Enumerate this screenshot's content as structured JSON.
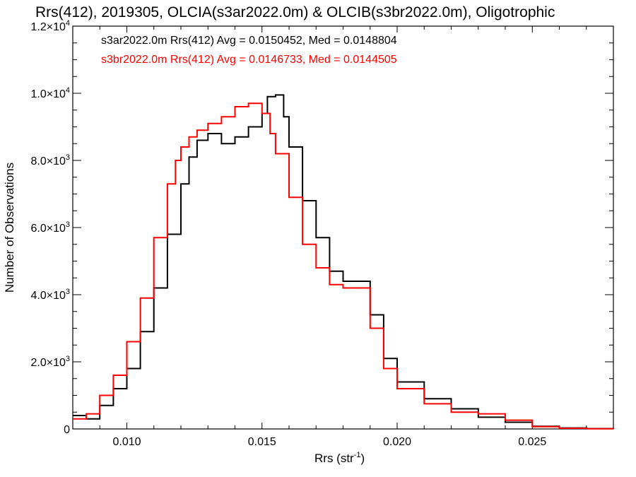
{
  "chart_data": {
    "type": "line",
    "title": "Rrs(412), 2019305, OLCIA(s3ar2022.0m) & OLCIB(s3br2022.0m), Oligotrophic",
    "xlabel_main": "Rrs (str",
    "xlabel_sup": "-1",
    "xlabel_end": ")",
    "ylabel": "Number of Observations",
    "xlim": [
      0.008,
      0.028
    ],
    "ylim": [
      0,
      12000
    ],
    "x_ticks": [
      {
        "value": 0.01,
        "label": "0.010"
      },
      {
        "value": 0.015,
        "label": "0.015"
      },
      {
        "value": 0.02,
        "label": "0.020"
      },
      {
        "value": 0.025,
        "label": "0.025"
      }
    ],
    "y_ticks": [
      {
        "value": 0,
        "mant": "0",
        "exp": ""
      },
      {
        "value": 2000,
        "mant": "2.0×10",
        "exp": "3"
      },
      {
        "value": 4000,
        "mant": "4.0×10",
        "exp": "3"
      },
      {
        "value": 6000,
        "mant": "6.0×10",
        "exp": "3"
      },
      {
        "value": 8000,
        "mant": "8.0×10",
        "exp": "3"
      },
      {
        "value": 10000,
        "mant": "1.0×10",
        "exp": "4"
      },
      {
        "value": 12000,
        "mant": "1.2×10",
        "exp": "4"
      }
    ],
    "legend_placement": "top-left",
    "series": [
      {
        "name": "s3ar2022.0m Rrs(412) Avg = 0.0150452, Med = 0.0148804",
        "color": "#000000",
        "x": [
          0.008,
          0.0085,
          0.009,
          0.0095,
          0.01,
          0.0105,
          0.011,
          0.0115,
          0.012,
          0.0123,
          0.0126,
          0.013,
          0.0135,
          0.014,
          0.0145,
          0.015,
          0.0152,
          0.0155,
          0.0158,
          0.016,
          0.0165,
          0.017,
          0.0175,
          0.018,
          0.0185,
          0.019,
          0.0195,
          0.02,
          0.021,
          0.022,
          0.023,
          0.024,
          0.025,
          0.026,
          0.027,
          0.028
        ],
        "y": [
          400,
          300,
          700,
          1200,
          1800,
          2900,
          4200,
          5800,
          7300,
          8100,
          8600,
          8800,
          8500,
          8700,
          9000,
          9400,
          9900,
          9950,
          9300,
          8400,
          6800,
          5700,
          4700,
          4400,
          4400,
          3400,
          2100,
          1400,
          900,
          600,
          350,
          200,
          80,
          30,
          10,
          5
        ]
      },
      {
        "name": "s3br2022.0m Rrs(412) Avg = 0.0146733, Med = 0.0144505",
        "color": "#ff0000",
        "x": [
          0.008,
          0.0085,
          0.009,
          0.0095,
          0.01,
          0.0105,
          0.011,
          0.0115,
          0.0118,
          0.012,
          0.0123,
          0.0126,
          0.013,
          0.0135,
          0.014,
          0.0145,
          0.015,
          0.0153,
          0.0155,
          0.016,
          0.0165,
          0.017,
          0.0175,
          0.018,
          0.0185,
          0.019,
          0.0195,
          0.02,
          0.021,
          0.022,
          0.023,
          0.024,
          0.025,
          0.026,
          0.027,
          0.028
        ],
        "y": [
          300,
          450,
          1000,
          1600,
          2600,
          3900,
          5700,
          7300,
          8000,
          8400,
          8700,
          8900,
          9100,
          9300,
          9600,
          9700,
          9400,
          8800,
          8200,
          6900,
          5500,
          4800,
          4300,
          4200,
          4200,
          3000,
          1800,
          1200,
          750,
          500,
          450,
          260,
          70,
          20,
          5,
          0
        ]
      }
    ]
  }
}
